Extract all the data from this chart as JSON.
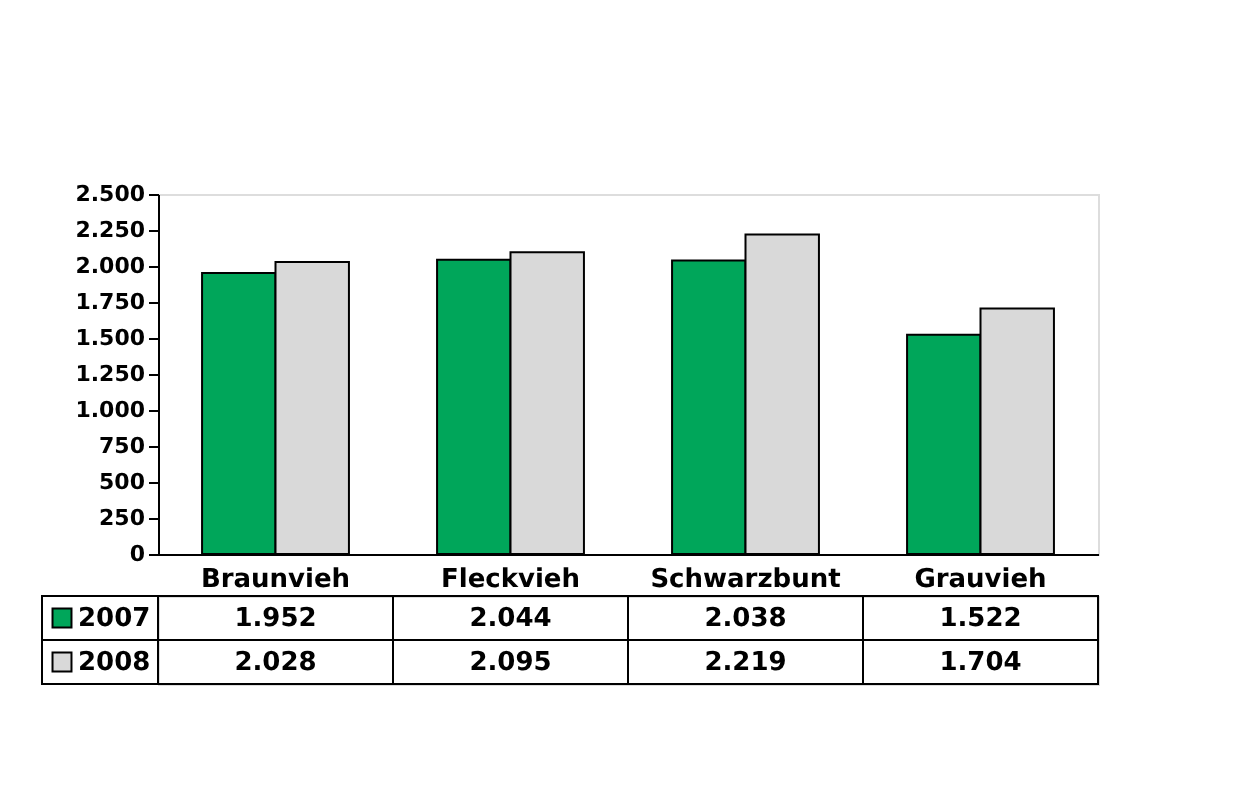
{
  "chart_data": {
    "type": "bar",
    "categories": [
      "Braunvieh",
      "Fleckvieh",
      "Schwarzbunt",
      "Grauvieh"
    ],
    "series": [
      {
        "name": "2007",
        "color": "#00a65a",
        "values": [
          1952,
          2044,
          2038,
          1522
        ],
        "value_labels": [
          "1.952",
          "2.044",
          "2.038",
          "1.522"
        ]
      },
      {
        "name": "2008",
        "color": "#d9d9d9",
        "values": [
          2028,
          2095,
          2219,
          1704
        ],
        "value_labels": [
          "2.028",
          "2.095",
          "2.219",
          "1.704"
        ]
      }
    ],
    "ylim": [
      0,
      2500
    ],
    "yticks": [
      {
        "value": 0,
        "label": "0"
      },
      {
        "value": 250,
        "label": "250"
      },
      {
        "value": 500,
        "label": "500"
      },
      {
        "value": 750,
        "label": "750"
      },
      {
        "value": 1000,
        "label": "1.000"
      },
      {
        "value": 1250,
        "label": "1.250"
      },
      {
        "value": 1500,
        "label": "1.500"
      },
      {
        "value": 1750,
        "label": "1.750"
      },
      {
        "value": 2000,
        "label": "2.000"
      },
      {
        "value": 2250,
        "label": "2.250"
      },
      {
        "value": 2500,
        "label": "2.500"
      }
    ],
    "grid": false,
    "legend": "bottom left"
  }
}
